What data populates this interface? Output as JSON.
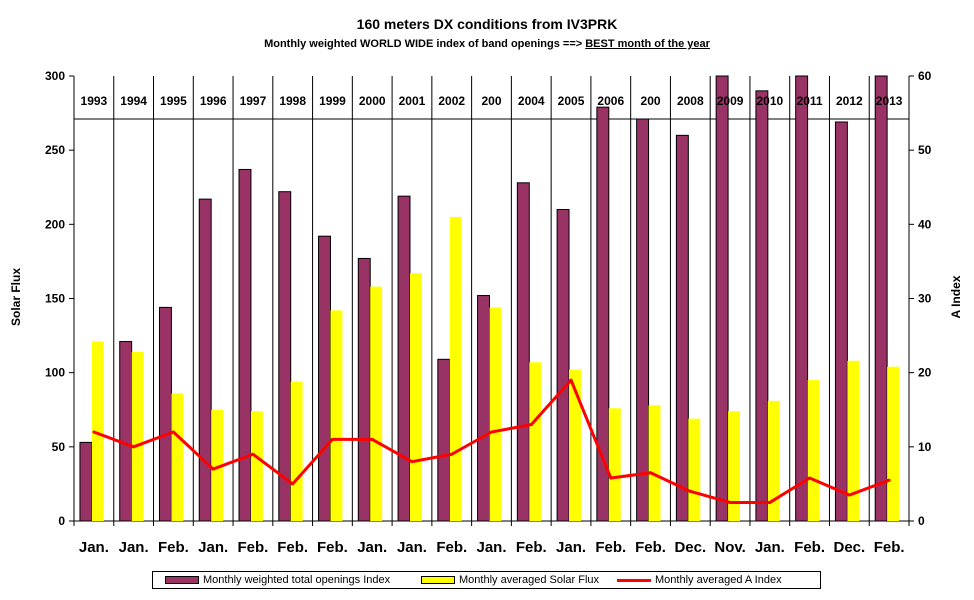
{
  "title": "160 meters DX conditions from IV3PRK",
  "subtitle_pre": "Monthly weighted WORLD WIDE index of band openings ==>",
  "subtitle_best": "BEST month of the year",
  "colors": {
    "openings": "#993366",
    "solar": "#ffff00",
    "aindex": "#ff0000"
  },
  "chart_data": {
    "type": "bar",
    "title": "160 meters DX conditions from IV3PRK",
    "subtitle": "Monthly weighted WORLD WIDE index of band openings ==> BEST month of the year",
    "categories": [
      "Jan.",
      "Jan.",
      "Feb.",
      "Jan.",
      "Feb.",
      "Feb.",
      "Feb.",
      "Jan.",
      "Jan.",
      "Feb.",
      "Jan.",
      "Feb.",
      "Jan.",
      "Feb.",
      "Feb.",
      "Dec.",
      "Nov.",
      "Jan.",
      "Feb.",
      "Dec.",
      "Feb."
    ],
    "years": [
      "1993",
      "1994",
      "1995",
      "1996",
      "1997",
      "1998",
      "1999",
      "2000",
      "2001",
      "2002",
      "200",
      "2004",
      "2005",
      "2006",
      "200",
      "2008",
      "2009",
      "2010",
      "2011",
      "2012",
      "2013"
    ],
    "ylabel": "Solar Flux",
    "y2label": "A Index",
    "ylim": [
      0,
      300
    ],
    "y2lim": [
      0,
      60
    ],
    "yticks": [
      0,
      50,
      100,
      150,
      200,
      250,
      300
    ],
    "y2ticks": [
      0,
      10,
      20,
      30,
      40,
      50,
      60
    ],
    "grid": false,
    "legend_position": "bottom",
    "series": [
      {
        "name": "Monthly weighted total openings Index",
        "type": "bar",
        "axis": "left",
        "values": [
          53,
          121,
          144,
          217,
          237,
          222,
          192,
          177,
          219,
          109,
          152,
          228,
          210,
          279,
          271,
          260,
          300,
          290,
          300,
          269,
          300
        ]
      },
      {
        "name": "Monthly averaged Solar Flux",
        "type": "bar",
        "axis": "left",
        "values": [
          121,
          114,
          86,
          75,
          74,
          94,
          142,
          158,
          167,
          205,
          144,
          107,
          102,
          76,
          78,
          69,
          74,
          81,
          95,
          108,
          104
        ]
      },
      {
        "name": "Monthly averaged A Index",
        "type": "line",
        "axis": "right",
        "values": [
          12,
          10,
          12,
          7,
          9,
          5,
          11,
          11,
          8,
          9,
          12,
          13,
          19,
          5.8,
          6.5,
          4,
          2.5,
          2.5,
          5.8,
          3.5,
          5.5
        ]
      }
    ]
  }
}
